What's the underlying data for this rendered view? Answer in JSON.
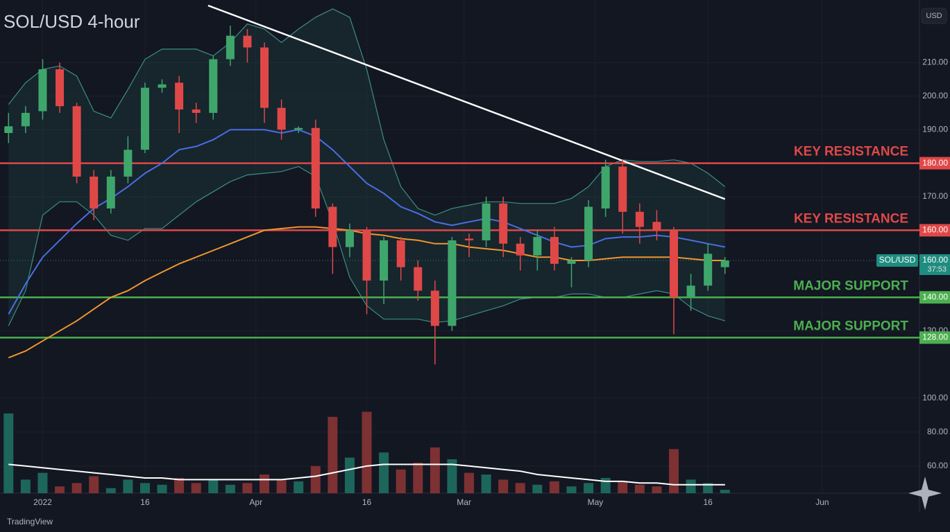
{
  "chart_data": {
    "type": "candlestick",
    "title": "SOL/USD 4-hour",
    "currency": "USD",
    "watermark": "TradingView",
    "xlim": [
      -0.5,
      53.4
    ],
    "xticks": [
      {
        "value": 2,
        "label": "2022"
      },
      {
        "value": 8,
        "label": "16"
      },
      {
        "value": 14.5,
        "label": "Apr"
      },
      {
        "value": 21,
        "label": "16"
      },
      {
        "value": 26.7,
        "label": "Mar"
      },
      {
        "value": 34.4,
        "label": "May"
      },
      {
        "value": 41,
        "label": "16"
      },
      {
        "value": 47.7,
        "label": "Jun"
      }
    ],
    "ylim": [
      113,
      227
    ],
    "yticks": [
      {
        "value": 210,
        "label": "210.00"
      },
      {
        "value": 200,
        "label": "200.00"
      },
      {
        "value": 190,
        "label": "190.00"
      },
      {
        "value": 170,
        "label": "170.00"
      },
      {
        "value": 130,
        "label": "130.00"
      }
    ],
    "grid": true,
    "up_color": "#3fa66b",
    "down_color": "#e04848",
    "open": [
      189,
      191,
      195.5,
      208,
      197,
      176,
      166.5,
      176,
      184,
      202.5,
      204,
      196,
      195,
      211,
      218,
      214.5,
      196.5,
      190,
      190.5,
      167,
      155,
      160,
      145,
      157,
      149,
      142,
      131.5,
      157.5,
      157,
      168,
      156,
      152.5,
      158,
      150,
      151,
      166.5,
      179,
      165.5,
      162.5,
      160,
      140,
      143.5,
      149
    ],
    "high": [
      195,
      197,
      211,
      210,
      198,
      178,
      178,
      188,
      204,
      205,
      206,
      198,
      212,
      221,
      220,
      216,
      199,
      191,
      193,
      168,
      162,
      161,
      158,
      158,
      151,
      145,
      158,
      159,
      170,
      170,
      158,
      160,
      161,
      152,
      169,
      181,
      181,
      168,
      166,
      161,
      147,
      156,
      152
    ],
    "low": [
      186,
      189,
      193,
      195,
      174,
      163,
      165,
      174,
      183,
      201,
      189,
      192,
      193,
      209,
      210,
      192,
      187,
      189,
      164,
      147,
      152,
      135,
      138,
      145,
      139,
      120,
      130,
      152,
      155,
      152,
      148,
      148,
      148,
      143,
      149,
      164,
      159,
      156,
      157,
      129,
      136,
      142,
      147
    ],
    "close": [
      191,
      195,
      208,
      197,
      176,
      166.5,
      176,
      184,
      202.5,
      203.5,
      196,
      195,
      211,
      218,
      214.5,
      196.5,
      190,
      190.5,
      166.5,
      155,
      160,
      145,
      157,
      149,
      142,
      131.5,
      157,
      157,
      168,
      156,
      152.5,
      158,
      150,
      151,
      167,
      179,
      165.5,
      161,
      160,
      140,
      143.5,
      153,
      151
    ],
    "lines": [
      {
        "color": "#4a6fe3",
        "values": [
          135,
          144,
          152,
          157,
          162,
          166.5,
          169.5,
          173,
          177,
          180,
          184,
          185,
          187,
          190,
          190,
          190,
          189,
          190,
          188,
          184,
          179,
          174,
          171,
          167,
          165,
          162.5,
          161.5,
          162.5,
          163.5,
          162.5,
          160.5,
          158.5,
          156.5,
          155,
          155.5,
          157.5,
          158,
          158,
          158.5,
          158,
          157,
          156,
          155
        ]
      },
      {
        "color": "#f0962e",
        "values": [
          122,
          124,
          127,
          130,
          133,
          136.5,
          140,
          142,
          145,
          147.5,
          150,
          152,
          154,
          156,
          158,
          160,
          160.5,
          161,
          161,
          160.5,
          160,
          159,
          158.5,
          157.5,
          157,
          156,
          156,
          155,
          154.5,
          154,
          153,
          152,
          152,
          151,
          151,
          151.5,
          152,
          152,
          152,
          152,
          151.5,
          151,
          151
        ]
      }
    ],
    "bands": {
      "color": "#3b8f85",
      "upper": [
        197.5,
        204,
        208,
        209,
        206,
        195.5,
        193.5,
        202,
        211,
        214,
        214,
        214,
        212,
        216,
        221.5,
        220,
        216,
        220,
        223.5,
        226,
        223.5,
        208,
        187,
        173,
        166.5,
        164.5,
        166.5,
        167.5,
        168.5,
        168.5,
        168,
        168,
        168,
        169.5,
        173,
        179,
        181,
        180.5,
        180.5,
        181,
        180,
        177,
        173
      ],
      "lower": [
        131.5,
        142,
        164.5,
        168.5,
        168.5,
        164.5,
        158.5,
        157,
        160.5,
        160.5,
        164.5,
        168.5,
        171.5,
        174.5,
        176.5,
        177,
        177.5,
        179,
        176,
        162.5,
        146,
        137.5,
        133.5,
        133.5,
        133.5,
        132.5,
        133,
        134.5,
        136,
        137.5,
        139.5,
        140,
        140,
        141,
        141,
        140,
        140,
        141,
        142,
        141,
        137,
        134.5,
        133
      ]
    },
    "trend_line": {
      "color": "#ffffff",
      "x": [
        11.7,
        42
      ],
      "y": [
        227,
        169.3
      ]
    },
    "levels": [
      {
        "value": 180,
        "label": "180.00",
        "text": "KEY RESISTANCE",
        "color": "#e04848"
      },
      {
        "value": 160,
        "label": "160.00",
        "text": "KEY RESISTANCE",
        "color": "#e04848"
      },
      {
        "value": 140,
        "label": "140.00",
        "text": "MAJOR SUPPORT",
        "color": "#4caf50"
      },
      {
        "value": 128,
        "label": "128.00",
        "text": "MAJOR SUPPORT",
        "color": "#4caf50"
      }
    ],
    "price_tag": {
      "symbol": "SOL/USD",
      "price": "160.00",
      "countdown": "37:53",
      "color": "#1f8c80"
    },
    "volume": {
      "ylim": [
        44,
        104
      ],
      "yticks": [
        {
          "value": 100,
          "label": "100.00"
        },
        {
          "value": 80,
          "label": "80.00"
        },
        {
          "value": 60,
          "label": "60.00"
        }
      ],
      "up_color": "#1f6f63",
      "down_color": "#8a3434",
      "values": [
        91,
        52,
        56,
        48,
        50,
        54,
        47,
        52,
        50,
        49,
        53,
        50,
        52,
        49,
        50,
        55,
        52,
        51,
        60,
        89,
        65,
        92,
        68,
        58,
        62,
        71,
        64,
        56,
        55,
        52,
        50,
        49,
        51,
        48,
        50,
        53,
        51,
        49,
        48,
        70,
        52,
        50,
        46
      ],
      "ma": {
        "color": "#ffffff",
        "values": [
          61,
          60,
          59,
          58,
          57,
          56,
          55,
          54,
          53,
          53,
          52,
          52,
          52,
          52,
          52,
          52,
          52,
          53,
          54,
          56,
          58,
          60,
          61,
          61,
          61,
          61,
          61,
          60,
          59,
          58,
          57,
          55,
          54,
          53,
          52,
          51,
          51,
          50,
          50,
          49,
          49,
          49,
          49
        ]
      }
    }
  }
}
